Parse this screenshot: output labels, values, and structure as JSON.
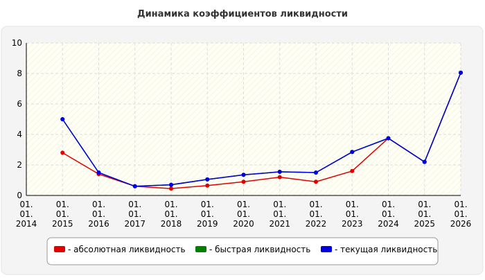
{
  "chart_data": {
    "type": "line",
    "title": "Динамика коэффициентов ликвидности",
    "categories": [
      "01.\n01.\n2014",
      "01.\n01.\n2015",
      "01.\n01.\n2016",
      "01.\n01.\n2017",
      "01.\n01.\n2018",
      "01.\n01.\n2019",
      "01.\n01.\n2020",
      "01.\n01.\n2021",
      "01.\n01.\n2022",
      "01.\n01.\n2023",
      "01.\n01.\n2024",
      "01.\n01.\n2025",
      "01.\n01.\n2026"
    ],
    "series": [
      {
        "name": "- абсолютная ликвидность",
        "color": "#e00000",
        "values": [
          null,
          2.8,
          1.4,
          0.6,
          0.45,
          0.65,
          0.9,
          1.2,
          0.9,
          1.6,
          3.75,
          2.2,
          8.05
        ]
      },
      {
        "name": "- быстрая ликвидность",
        "color": "#008000",
        "values": [
          null,
          5.0,
          1.5,
          0.6,
          0.7,
          1.05,
          1.35,
          1.55,
          1.5,
          2.85,
          3.75,
          2.2,
          8.05
        ]
      },
      {
        "name": "- текущая ликвидность",
        "color": "#0000e0",
        "values": [
          null,
          5.0,
          1.5,
          0.6,
          0.7,
          1.05,
          1.35,
          1.55,
          1.5,
          2.85,
          3.75,
          2.2,
          8.05
        ]
      }
    ],
    "ylim": [
      0,
      10
    ],
    "yticks": [
      0,
      2,
      4,
      6,
      8,
      10
    ],
    "grid": true
  }
}
